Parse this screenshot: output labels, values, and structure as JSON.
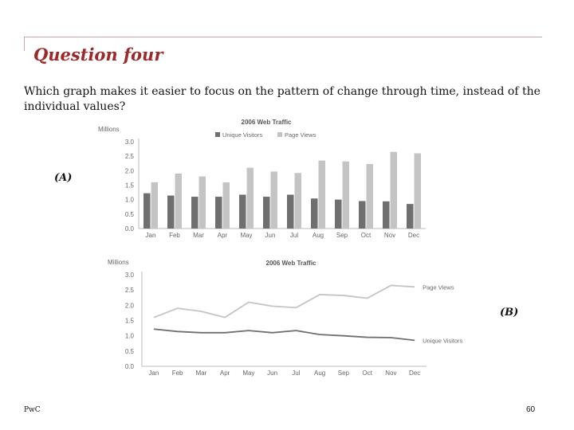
{
  "slide": {
    "title": "Question four",
    "question": "Which graph makes it easier to focus on the pattern of change through time, instead of the individual values?",
    "label_a": "(A)",
    "label_b": "(B)",
    "footer_left": "PwC",
    "page_number": "60"
  },
  "colors": {
    "title": "#9b2a2a",
    "rule": "#c9a8a8",
    "unique_visitors": "#6f6f6f",
    "page_views": "#c4c4c4"
  },
  "chart_data": [
    {
      "type": "bar",
      "title": "2006 Web Traffic",
      "ylabel": "Millions",
      "categories": [
        "Jan",
        "Feb",
        "Mar",
        "Apr",
        "May",
        "Jun",
        "Jul",
        "Aug",
        "Sep",
        "Oct",
        "Nov",
        "Dec"
      ],
      "series": [
        {
          "name": "Unique Visitors",
          "values": [
            1.22,
            1.14,
            1.1,
            1.1,
            1.17,
            1.1,
            1.17,
            1.04,
            1.0,
            0.95,
            0.94,
            0.85
          ]
        },
        {
          "name": "Page Views",
          "values": [
            1.6,
            1.9,
            1.8,
            1.6,
            2.1,
            1.97,
            1.92,
            2.35,
            2.32,
            2.23,
            2.65,
            2.6
          ]
        }
      ],
      "yticks": [
        "0.0",
        "0.5",
        "1.0",
        "1.5",
        "2.0",
        "2.5",
        "3.0"
      ],
      "ylim": [
        0,
        3.0
      ],
      "legend": "top"
    },
    {
      "type": "line",
      "title": "2006 Web Traffic",
      "ylabel": "Millions",
      "categories": [
        "Jan",
        "Feb",
        "Mar",
        "Apr",
        "May",
        "Jun",
        "Jul",
        "Aug",
        "Sep",
        "Oct",
        "Nov",
        "Dec"
      ],
      "series": [
        {
          "name": "Page Views",
          "values": [
            1.6,
            1.9,
            1.8,
            1.6,
            2.1,
            1.97,
            1.92,
            2.35,
            2.32,
            2.23,
            2.65,
            2.6
          ]
        },
        {
          "name": "Unique Visitors",
          "values": [
            1.22,
            1.14,
            1.1,
            1.1,
            1.17,
            1.1,
            1.17,
            1.04,
            1.0,
            0.95,
            0.94,
            0.85
          ]
        }
      ],
      "yticks": [
        "0.0",
        "0.5",
        "1.0",
        "1.5",
        "2.0",
        "2.5",
        "3.0"
      ],
      "ylim": [
        0,
        3.0
      ],
      "legend": "direct labels at line ends"
    }
  ]
}
